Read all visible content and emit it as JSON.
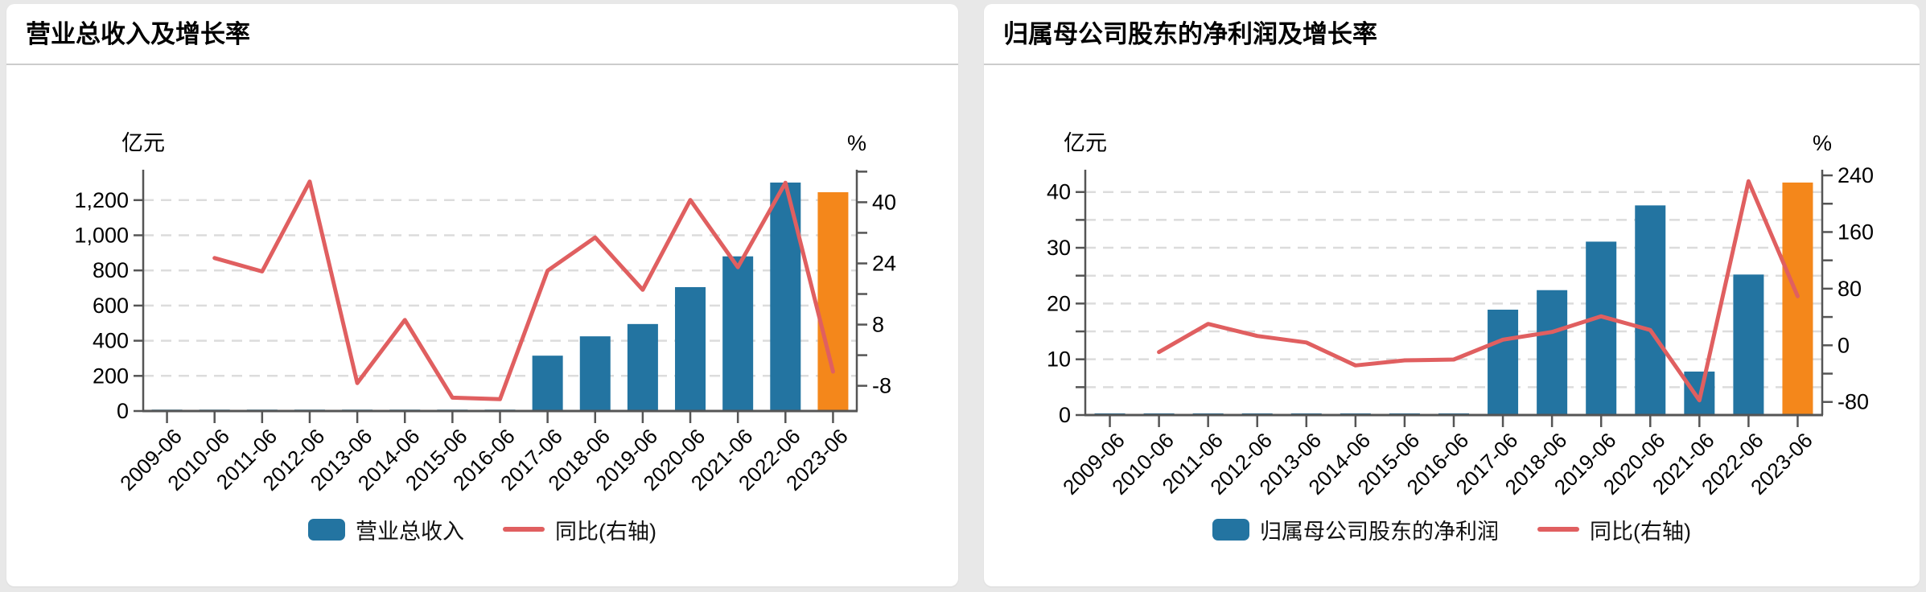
{
  "page": {
    "background": "#e8e8e8"
  },
  "colors": {
    "bar_blue": "#2374a1",
    "bar_highlight_orange": "#f4871b",
    "line_red": "#e05f60",
    "axis": "#555555",
    "grid": "#dcdcdc",
    "x_label": "#222222",
    "card_bg": "#ffffff",
    "divider": "#cccccc"
  },
  "chart_data": [
    {
      "type": "bar",
      "subtype": "bar+line combo, dual axis",
      "title": "营业总收入及增长率",
      "categories": [
        "2009-06",
        "2010-06",
        "2011-06",
        "2012-06",
        "2013-06",
        "2014-06",
        "2015-06",
        "2016-06",
        "2017-06",
        "2018-06",
        "2019-06",
        "2020-06",
        "2021-06",
        "2022-06",
        "2023-06"
      ],
      "series": [
        {
          "name": "营业总收入",
          "type": "bar",
          "axis": "left",
          "highlight_last": true,
          "values": [
            8,
            8,
            8,
            8,
            8,
            8,
            8,
            8,
            315,
            425,
            495,
            705,
            880,
            1300,
            1245
          ]
        },
        {
          "name": "同比(右轴)",
          "type": "line",
          "axis": "right",
          "values": [
            null,
            25.4,
            21.9,
            45.4,
            -7.3,
            9.2,
            -11.1,
            -11.5,
            22.1,
            30.8,
            17.1,
            40.6,
            23.0,
            45.1,
            -4.3
          ]
        }
      ],
      "left_axis": {
        "unit": "亿元",
        "tick_values": [
          0,
          200,
          400,
          600,
          800,
          1000,
          1200
        ],
        "tick_labels": [
          "0",
          "200",
          "400",
          "600",
          "800",
          "1,000",
          "1,200"
        ],
        "minor_tick_values": [],
        "grid_values": [
          200,
          400,
          600,
          800,
          1000,
          1200
        ],
        "range": [
          0,
          1373
        ]
      },
      "right_axis": {
        "unit": "%",
        "tick_values": [
          -8,
          8,
          24,
          40
        ],
        "tick_labels": [
          "-8",
          "8",
          "24",
          "40"
        ],
        "minor_tick_values": [
          0,
          16,
          32,
          48
        ],
        "range": [
          -14.6,
          48.5
        ]
      },
      "legend_position": "bottom"
    },
    {
      "type": "bar",
      "subtype": "bar+line combo, dual axis",
      "title": "归属母公司股东的净利润及增长率",
      "categories": [
        "2009-06",
        "2010-06",
        "2011-06",
        "2012-06",
        "2013-06",
        "2014-06",
        "2015-06",
        "2016-06",
        "2017-06",
        "2018-06",
        "2019-06",
        "2020-06",
        "2021-06",
        "2022-06",
        "2023-06"
      ],
      "series": [
        {
          "name": "归属母公司股东的净利润",
          "type": "bar",
          "axis": "left",
          "highlight_last": true,
          "values": [
            0.3,
            0.3,
            0.3,
            0.3,
            0.3,
            0.3,
            0.3,
            0.3,
            18.9,
            22.4,
            31.1,
            37.6,
            7.8,
            25.2,
            41.7
          ]
        },
        {
          "name": "同比(右轴)",
          "type": "line",
          "axis": "right",
          "values": [
            null,
            -9.5,
            30.2,
            13.2,
            4.0,
            -28.4,
            -21.2,
            -20.1,
            8.0,
            18.9,
            40.9,
            21.6,
            -77.7,
            231.8,
            69.3
          ]
        }
      ],
      "left_axis": {
        "unit": "亿元",
        "tick_values": [
          0,
          10,
          20,
          30,
          40
        ],
        "tick_labels": [
          "0",
          "10",
          "20",
          "30",
          "40"
        ],
        "minor_tick_values": [
          5,
          15,
          25,
          35
        ],
        "grid_values": [
          5,
          10,
          15,
          20,
          25,
          30,
          35,
          40
        ],
        "range": [
          0,
          44
        ]
      },
      "right_axis": {
        "unit": "%",
        "tick_values": [
          -80,
          0,
          80,
          160,
          240
        ],
        "tick_labels": [
          "-80",
          "0",
          "80",
          "160",
          "240"
        ],
        "minor_tick_values": [
          -40,
          40,
          120,
          200
        ],
        "range": [
          -98.5,
          248
        ]
      },
      "legend_position": "bottom"
    }
  ]
}
